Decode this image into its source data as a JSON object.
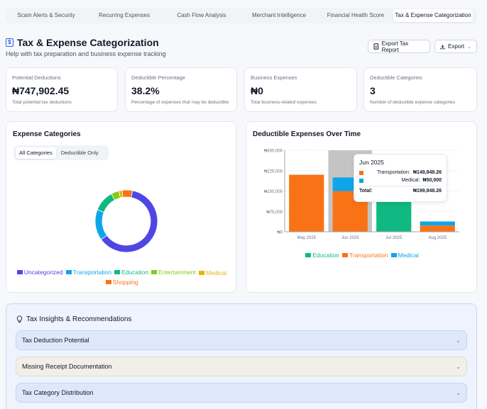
{
  "tabs": [
    {
      "label": "Scam Alerts & Security"
    },
    {
      "label": "Recurring Expenses"
    },
    {
      "label": "Cash Flow Analysis"
    },
    {
      "label": "Merchant Intelligence"
    },
    {
      "label": "Financial Health Score"
    },
    {
      "label": "Tax & Expense Categorization"
    }
  ],
  "header": {
    "icon": "$",
    "title": "Tax & Expense Categorization",
    "subtitle": "Help with tax preparation and business expense tracking",
    "export_report": "Export Tax Report",
    "export": "Export"
  },
  "stats": [
    {
      "label": "Potential Deductions",
      "value": "₦747,902.45",
      "desc": "Total potential tax deductions"
    },
    {
      "label": "Deductible Percentage",
      "value": "38.2%",
      "desc": "Percentage of expenses that may be deductible"
    },
    {
      "label": "Business Expenses",
      "value": "₦0",
      "desc": "Total business-related expenses"
    },
    {
      "label": "Deductible Categories",
      "value": "3",
      "desc": "Number of deductible expense categories"
    }
  ],
  "expense_card": {
    "title": "Expense Categories",
    "toggle": [
      "All Categories",
      "Deductible Only"
    ],
    "legend": [
      {
        "name": "Uncategorized",
        "color": "#4f46e5"
      },
      {
        "name": "Transportation",
        "color": "#0ea5e9"
      },
      {
        "name": "Education",
        "color": "#10b981"
      },
      {
        "name": "Entertainment",
        "color": "#84cc16"
      },
      {
        "name": "Medical",
        "color": "#eab308"
      },
      {
        "name": "Shopping",
        "color": "#f97316"
      }
    ]
  },
  "deductible_card": {
    "title": "Deductible Expenses Over Time"
  },
  "chart_data": [
    {
      "type": "pie",
      "categories": [
        "Uncategorized",
        "Transportation",
        "Education",
        "Entertainment",
        "Medical",
        "Shopping"
      ],
      "values": [
        61.8,
        16.0,
        11.0,
        4.0,
        1.8,
        5.4
      ],
      "colors": [
        "#4f46e5",
        "#0ea5e9",
        "#10b981",
        "#84cc16",
        "#eab308",
        "#f97316"
      ],
      "donut": true
    },
    {
      "type": "bar",
      "stacked": true,
      "categories": [
        "May 2025",
        "Jun 2025",
        "Jul 2025",
        "Aug 2025"
      ],
      "series": [
        {
          "name": "Education",
          "color": "#10b981",
          "values": [
            0,
            0,
            170000,
            0
          ]
        },
        {
          "name": "Transportation",
          "color": "#f97316",
          "values": [
            210000,
            149848.26,
            0,
            23000
          ]
        },
        {
          "name": "Medical",
          "color": "#0ea5e9",
          "values": [
            0,
            50000,
            0,
            15000
          ]
        }
      ],
      "ylim": [
        0,
        300000
      ],
      "yticks": [
        "₦0",
        "₦75,000",
        "₦150,000",
        "₦225,000",
        "₦300,000"
      ],
      "legend": "bottom",
      "grid": true,
      "highlight_category": "Jun 2025"
    }
  ],
  "tooltip": {
    "title": "Jun 2025",
    "rows": [
      {
        "label": "Transportation:",
        "value": "₦149,848.26",
        "color": "#f97316"
      },
      {
        "label": "Medical:",
        "value": "₦50,000",
        "color": "#0ea5e9"
      }
    ],
    "total_label": "Total:",
    "total_value": "₦199,848.26"
  },
  "insights": {
    "title": "Tax Insights & Recommendations",
    "items": [
      {
        "label": "Tax Deduction Potential"
      },
      {
        "label": "Missing Receipt Documentation"
      },
      {
        "label": "Tax Category Distribution"
      }
    ]
  }
}
